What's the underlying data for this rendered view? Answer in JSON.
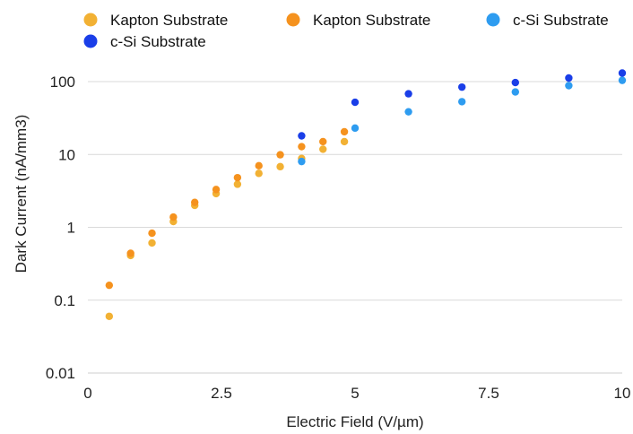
{
  "chart_data": {
    "type": "scatter",
    "xlabel": "Electric Field (V/µm)",
    "ylabel": "Dark Current (nA/mm3)",
    "x_scale": "linear",
    "y_scale": "log",
    "xlim": [
      0,
      10
    ],
    "ylim": [
      0.01,
      100
    ],
    "x_ticks": [
      0,
      2.5,
      5,
      7.5,
      10
    ],
    "x_tick_labels": [
      "0",
      "2.5",
      "5",
      "7.5",
      "10"
    ],
    "y_ticks": [
      0.01,
      0.1,
      1,
      10,
      100
    ],
    "y_tick_labels": [
      "0.01",
      "0.1",
      "1",
      "10",
      "100"
    ],
    "grid": "horizontal",
    "legend_position": "top",
    "series": [
      {
        "name": "Kapton Substrate",
        "color": "#F2B134",
        "points": [
          [
            0.4,
            0.06
          ],
          [
            0.8,
            0.41
          ],
          [
            1.2,
            0.61
          ],
          [
            1.6,
            1.2
          ],
          [
            2.0,
            2.0
          ],
          [
            2.4,
            2.9
          ],
          [
            2.8,
            3.9
          ],
          [
            3.2,
            5.5
          ],
          [
            3.6,
            6.8
          ],
          [
            4.0,
            8.8
          ],
          [
            4.4,
            11.8
          ],
          [
            4.8,
            15.0
          ]
        ]
      },
      {
        "name": "Kapton Substrate",
        "color": "#F5921E",
        "points": [
          [
            0.4,
            0.16
          ],
          [
            0.8,
            0.44
          ],
          [
            1.2,
            0.83
          ],
          [
            1.6,
            1.38
          ],
          [
            2.0,
            2.2
          ],
          [
            2.4,
            3.3
          ],
          [
            2.8,
            4.8
          ],
          [
            3.2,
            7.0
          ],
          [
            3.6,
            9.9
          ],
          [
            4.0,
            12.8
          ],
          [
            4.4,
            15.0
          ],
          [
            4.8,
            20.5
          ]
        ]
      },
      {
        "name": "c-Si Substrate",
        "color": "#2E9CF0",
        "points": [
          [
            4.0,
            8.0
          ],
          [
            5.0,
            23.0
          ],
          [
            6.0,
            38.5
          ],
          [
            7.0,
            53.0
          ],
          [
            8.0,
            72.0
          ],
          [
            9.0,
            88.0
          ],
          [
            10.0,
            104.0
          ]
        ]
      },
      {
        "name": "c-Si Substrate",
        "color": "#1A3EE8",
        "points": [
          [
            4.0,
            18.0
          ],
          [
            5.0,
            52.0
          ],
          [
            6.0,
            68.0
          ],
          [
            7.0,
            84.0
          ],
          [
            8.0,
            97.0
          ],
          [
            9.0,
            112.0
          ],
          [
            10.0,
            131.0
          ]
        ]
      }
    ]
  }
}
